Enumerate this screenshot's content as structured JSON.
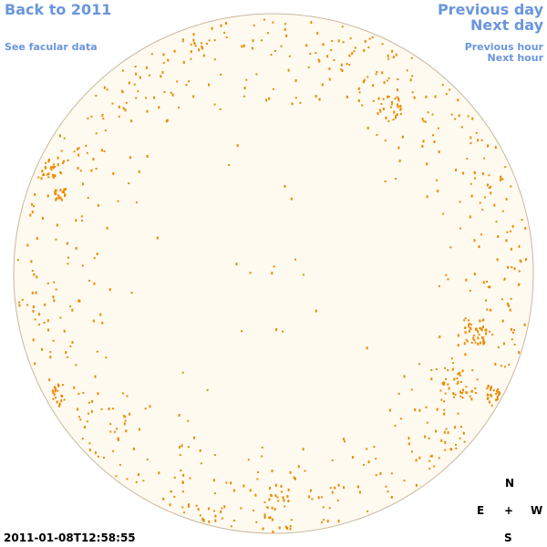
{
  "header": {
    "back_link": "Back to 2011",
    "facular_link": "See facular data",
    "previous_day": "Previous day",
    "next_day": "Next day",
    "previous_hour": "Previous hour",
    "next_hour": "Next hour"
  },
  "compass": {
    "north": "N",
    "east": "E",
    "center": "+",
    "west": "W",
    "south": "S"
  },
  "timestamp": "2011-01-08T12:58:55"
}
